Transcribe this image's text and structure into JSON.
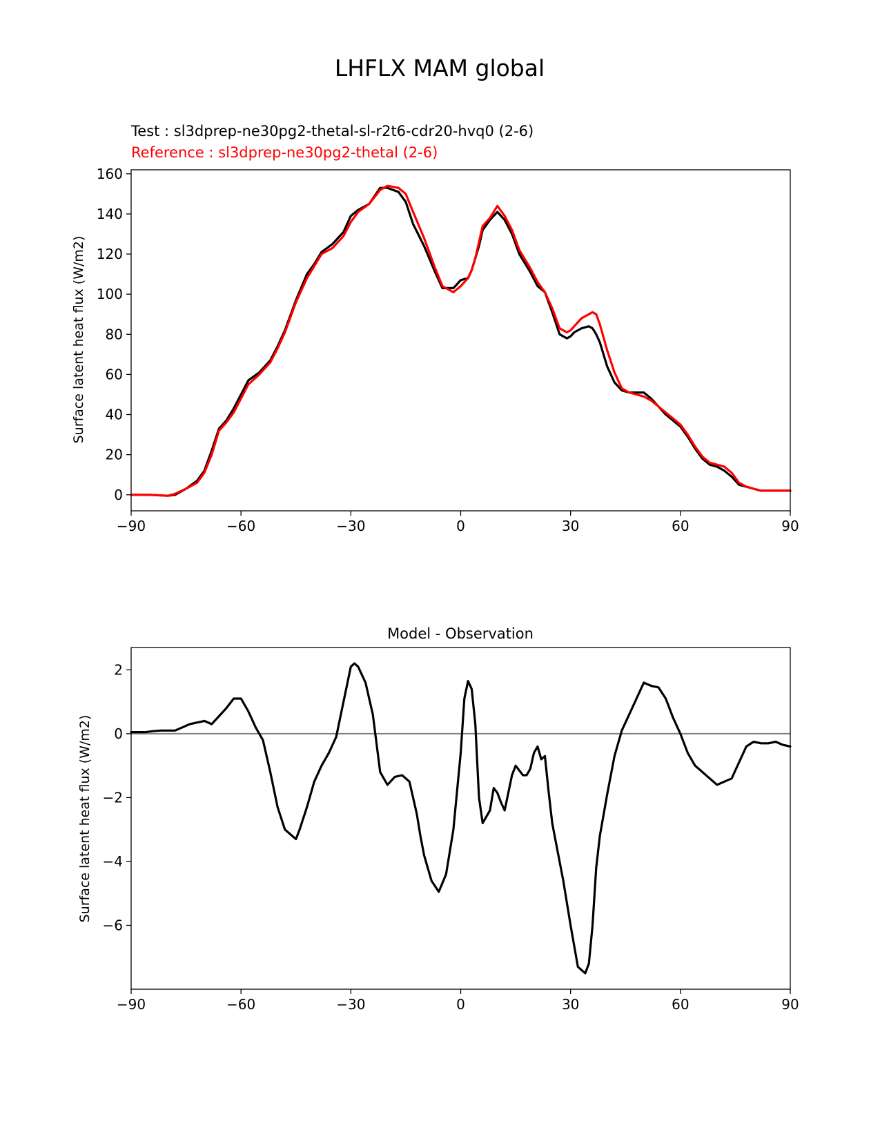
{
  "figure": {
    "suptitle": "LHFLX MAM global"
  },
  "colors": {
    "test": "#000000",
    "reference": "#ff0000",
    "zero_line": "#808080",
    "axes": "#000000"
  },
  "chart_data": [
    {
      "type": "line",
      "title_test": "Test : sl3dprep-ne30pg2-thetal-sl-r2t6-cdr20-hvq0 (2-6)",
      "title_reference": "Reference : sl3dprep-ne30pg2-thetal (2-6)",
      "xlabel": "",
      "ylabel": "Surface latent heat flux (W/m2)",
      "xlim": [
        -90,
        90
      ],
      "ylim": [
        -8,
        162
      ],
      "xticks": [
        -90,
        -60,
        -30,
        0,
        30,
        60,
        90
      ],
      "xtick_labels": [
        "−90",
        "−60",
        "−30",
        "0",
        "30",
        "60",
        "90"
      ],
      "yticks": [
        0,
        20,
        40,
        60,
        80,
        100,
        120,
        140,
        160
      ],
      "ytick_labels": [
        "0",
        "20",
        "40",
        "60",
        "80",
        "100",
        "120",
        "140",
        "160"
      ],
      "series": [
        {
          "name": "Test",
          "color": "#000000",
          "x": [
            -90,
            -85,
            -80,
            -78,
            -75,
            -72,
            -70,
            -68,
            -66,
            -64,
            -62,
            -60,
            -58,
            -55,
            -52,
            -50,
            -48,
            -45,
            -42,
            -40,
            -38,
            -35,
            -32,
            -30,
            -28,
            -25,
            -22,
            -20,
            -17,
            -15,
            -13,
            -10,
            -7,
            -5,
            -2,
            0,
            2,
            3,
            4,
            5,
            6,
            8,
            10,
            12,
            14,
            16,
            19,
            21,
            23,
            25,
            27,
            29,
            30,
            31,
            33,
            35,
            36,
            37,
            38,
            40,
            42,
            44,
            46,
            48,
            50,
            52,
            54,
            56,
            58,
            60,
            62,
            64,
            66,
            68,
            70,
            72,
            74,
            76,
            78,
            80,
            82,
            84,
            86,
            88,
            90
          ],
          "y": [
            0,
            0,
            -0.5,
            0,
            3,
            7,
            12,
            22,
            33,
            37,
            43,
            50,
            57,
            61,
            67,
            74,
            82,
            97,
            110,
            115,
            121,
            125,
            131,
            139,
            142,
            145,
            153,
            153,
            151,
            146,
            135,
            124,
            111,
            103,
            103,
            107,
            108,
            112,
            118,
            124,
            132,
            137,
            141,
            137,
            130,
            120,
            111,
            104,
            101,
            91,
            80,
            78,
            79,
            81,
            83,
            84,
            83,
            80,
            76,
            64,
            56,
            52,
            51,
            51,
            51,
            48,
            44,
            40,
            37,
            34,
            29,
            23,
            18,
            15,
            14,
            12,
            9,
            5,
            4,
            3,
            2,
            2,
            2,
            2,
            2
          ]
        },
        {
          "name": "Reference",
          "color": "#ff0000",
          "x": [
            -90,
            -85,
            -80,
            -78,
            -75,
            -72,
            -70,
            -68,
            -66,
            -64,
            -62,
            -60,
            -58,
            -55,
            -52,
            -50,
            -48,
            -45,
            -42,
            -40,
            -38,
            -35,
            -32,
            -30,
            -28,
            -25,
            -22,
            -20,
            -17,
            -15,
            -13,
            -10,
            -7,
            -5,
            -2,
            0,
            2,
            3,
            4,
            5,
            6,
            8,
            10,
            12,
            14,
            16,
            19,
            21,
            23,
            25,
            27,
            29,
            30,
            31,
            33,
            35,
            36,
            37,
            38,
            40,
            42,
            44,
            46,
            48,
            50,
            52,
            54,
            56,
            58,
            60,
            62,
            64,
            66,
            68,
            70,
            72,
            74,
            76,
            78,
            80,
            82,
            84,
            86,
            88,
            90
          ],
          "y": [
            0,
            0,
            -0.5,
            0.5,
            3,
            6,
            11,
            20,
            32,
            36,
            41,
            48,
            55,
            60,
            66,
            73,
            81,
            96,
            108,
            114,
            120,
            123,
            129,
            136,
            141,
            145,
            152,
            154,
            153,
            150,
            141,
            128,
            113,
            104,
            101,
            104,
            108,
            112,
            118,
            126,
            134,
            138,
            144,
            139,
            132,
            122,
            113,
            106,
            101,
            93,
            83,
            81,
            82,
            84,
            88,
            90,
            91,
            90,
            85,
            72,
            61,
            53,
            51,
            50,
            49,
            47,
            44,
            41,
            38,
            35,
            30,
            24,
            19,
            16,
            15,
            14,
            11,
            6,
            4,
            3,
            2,
            2,
            2,
            2,
            2
          ]
        }
      ]
    },
    {
      "type": "line",
      "title": "Model - Observation",
      "xlabel": "",
      "ylabel": "Surface latent heat flux (W/m2)",
      "xlim": [
        -90,
        90
      ],
      "ylim": [
        -8.0,
        2.7
      ],
      "xticks": [
        -90,
        -60,
        -30,
        0,
        30,
        60,
        90
      ],
      "xtick_labels": [
        "−90",
        "−60",
        "−30",
        "0",
        "30",
        "60",
        "90"
      ],
      "yticks": [
        2,
        0,
        -2,
        -4,
        -6
      ],
      "ytick_labels": [
        "2",
        "0",
        "−2",
        "−4",
        "−6"
      ],
      "zero_line": 0,
      "series": [
        {
          "name": "Model - Observation",
          "color": "#000000",
          "x": [
            -90,
            -88,
            -86,
            -84,
            -82,
            -80,
            -78,
            -76,
            -74,
            -72,
            -70,
            -68,
            -66,
            -64,
            -62,
            -60,
            -58,
            -56,
            -54,
            -52,
            -50,
            -48,
            -46,
            -45,
            -44,
            -42,
            -40,
            -38,
            -36,
            -34,
            -32,
            -30,
            -29,
            -28,
            -26,
            -24,
            -22,
            -20,
            -18,
            -16,
            -14,
            -12,
            -11,
            -10,
            -8,
            -6,
            -4,
            -2,
            -1,
            0,
            1,
            2,
            3,
            4,
            5,
            6,
            8,
            9,
            10,
            11,
            12,
            14,
            15,
            16,
            17,
            18,
            19,
            20,
            21,
            22,
            23,
            24,
            25,
            26,
            28,
            30,
            32,
            34,
            35,
            36,
            37,
            38,
            40,
            42,
            44,
            46,
            48,
            50,
            52,
            54,
            56,
            58,
            60,
            62,
            64,
            66,
            68,
            70,
            72,
            74,
            76,
            78,
            80,
            82,
            84,
            86,
            88,
            90
          ],
          "y": [
            0.05,
            0.05,
            0.05,
            0.08,
            0.1,
            0.1,
            0.1,
            0.2,
            0.3,
            0.35,
            0.4,
            0.3,
            0.55,
            0.8,
            1.1,
            1.1,
            0.7,
            0.2,
            -0.2,
            -1.2,
            -2.3,
            -3.0,
            -3.2,
            -3.3,
            -3.0,
            -2.3,
            -1.5,
            -1.0,
            -0.6,
            -0.1,
            1.0,
            2.1,
            2.2,
            2.1,
            1.6,
            0.6,
            -1.2,
            -1.6,
            -1.35,
            -1.3,
            -1.5,
            -2.5,
            -3.2,
            -3.8,
            -4.6,
            -4.95,
            -4.4,
            -3.0,
            -1.8,
            -0.6,
            1.1,
            1.65,
            1.4,
            0.3,
            -2.0,
            -2.8,
            -2.4,
            -1.7,
            -1.85,
            -2.15,
            -2.4,
            -1.3,
            -1.0,
            -1.15,
            -1.3,
            -1.3,
            -1.1,
            -0.6,
            -0.4,
            -0.8,
            -0.7,
            -1.8,
            -2.8,
            -3.4,
            -4.6,
            -6.0,
            -7.3,
            -7.5,
            -7.2,
            -6.0,
            -4.2,
            -3.2,
            -1.9,
            -0.7,
            0.1,
            0.6,
            1.1,
            1.6,
            1.5,
            1.45,
            1.1,
            0.5,
            0.0,
            -0.6,
            -1.0,
            -1.2,
            -1.4,
            -1.6,
            -1.5,
            -1.4,
            -0.9,
            -0.4,
            -0.25,
            -0.3,
            -0.3,
            -0.25,
            -0.35,
            -0.4
          ]
        }
      ]
    }
  ]
}
